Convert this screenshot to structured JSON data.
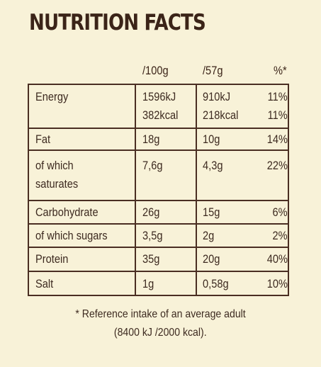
{
  "title": "NUTRITION FACTS",
  "columns": {
    "per100": "/100g",
    "perServing": "/57g",
    "pct": "%*"
  },
  "rows": [
    {
      "name": "Energy",
      "per100": "1596kJ",
      "per100b": "382kcal",
      "perServing": "910kJ",
      "perServingb": "218kcal",
      "pct": "11%",
      "pctb": "11%"
    },
    {
      "name": "Fat",
      "per100": "18g",
      "perServing": "10g",
      "pct": "14%"
    },
    {
      "name": "of which",
      "nameb": "saturates",
      "per100": "7,6g",
      "perServing": "4,3g",
      "pct": "22%"
    },
    {
      "name": "Carbohydrate",
      "per100": "26g",
      "perServing": "15g",
      "pct": "6%"
    },
    {
      "name": "of which sugars",
      "per100": "3,5g",
      "perServing": "2g",
      "pct": "2%"
    },
    {
      "name": "Protein",
      "per100": "35g",
      "perServing": "20g",
      "pct": "40%"
    },
    {
      "name": "Salt",
      "per100": "1g",
      "perServing": "0,58g",
      "pct": "10%"
    }
  ],
  "footnote": {
    "line1": "* Reference intake of an average adult",
    "line2": "(8400 kJ /2000 kcal)."
  }
}
